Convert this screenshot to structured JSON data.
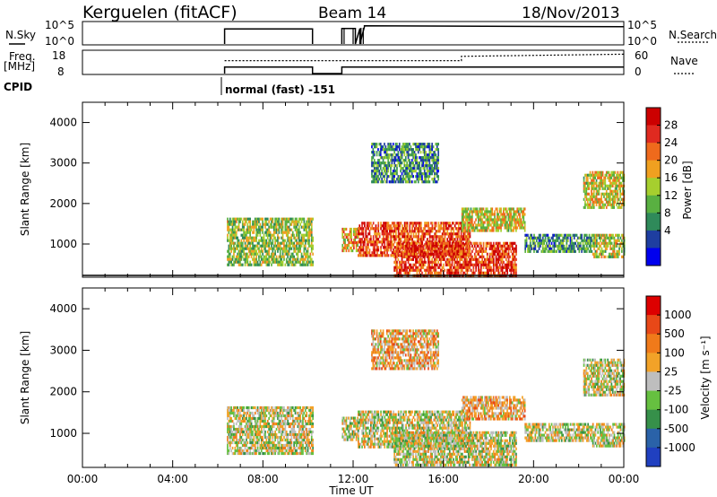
{
  "header": {
    "station": "Kerguelen (fitACF)",
    "beam": "Beam 14",
    "date": "18/Nov/2013"
  },
  "top_panels": {
    "nsky_label": "N.Sky",
    "nsky_ticks": [
      "10^5",
      "10^0"
    ],
    "nsearch_label": "N.Search",
    "nsearch_ticks": [
      "10^5",
      "10^0"
    ],
    "freq_label_line1": "Freq.",
    "freq_label_line2": "[MHz]",
    "freq_ticks": [
      "18",
      "8"
    ],
    "nave_label": "Nave",
    "nave_ticks": [
      "60",
      "0"
    ],
    "cpid_label": "CPID",
    "cpid_value": "normal (fast) -151"
  },
  "chart_data": [
    {
      "type": "heatmap",
      "panel": "power",
      "ylabel": "Slant Range [km]",
      "ylim": [
        180,
        4500
      ],
      "yticks": [
        1000,
        2000,
        3000,
        4000
      ],
      "xlim": [
        0,
        24
      ],
      "colorbar_label": "Power [dB]",
      "colorbar_ticks": [
        "28",
        "24",
        "20",
        "16",
        "12",
        "8",
        "4"
      ],
      "colors": [
        "#0000ee",
        "#1e3ea0",
        "#2f8a5a",
        "#59b041",
        "#a6cf2e",
        "#f0a020",
        "#ef6a1c",
        "#e02a20",
        "#cc0000"
      ],
      "regions": [
        {
          "t": [
            6.4,
            10.2
          ],
          "r": [
            500,
            1650
          ],
          "level": 0.45
        },
        {
          "t": [
            11.5,
            12.2
          ],
          "r": [
            850,
            1400
          ],
          "level": 0.6
        },
        {
          "t": [
            12.2,
            17.2
          ],
          "r": [
            700,
            1550
          ],
          "level": 0.78
        },
        {
          "t": [
            13.8,
            19.2
          ],
          "r": [
            250,
            1050
          ],
          "level": 0.82
        },
        {
          "t": [
            16.8,
            19.6
          ],
          "r": [
            1350,
            1900
          ],
          "level": 0.55
        },
        {
          "t": [
            12.8,
            15.8
          ],
          "r": [
            2550,
            3500
          ],
          "level": 0.3
        },
        {
          "t": [
            19.6,
            22.6
          ],
          "r": [
            800,
            1250
          ],
          "level": 0.3
        },
        {
          "t": [
            22.2,
            24
          ],
          "r": [
            1900,
            2800
          ],
          "level": 0.55
        },
        {
          "t": [
            22.6,
            24
          ],
          "r": [
            700,
            1250
          ],
          "level": 0.5
        }
      ]
    },
    {
      "type": "heatmap",
      "panel": "velocity",
      "ylabel": "Slant Range [km]",
      "ylim": [
        180,
        4500
      ],
      "yticks": [
        1000,
        2000,
        3000,
        4000
      ],
      "xlim": [
        0,
        24
      ],
      "xticks": [
        "00:00",
        "04:00",
        "08:00",
        "12:00",
        "16:00",
        "20:00",
        "00:00"
      ],
      "xlabel": "Time UT",
      "colorbar_label": "Velocity [m s⁻¹]",
      "colorbar_ticks": [
        "1000",
        "500",
        "100",
        "25",
        "-25",
        "-100",
        "-500",
        "-1000"
      ],
      "colors": [
        "#2040c0",
        "#2a62a8",
        "#36904a",
        "#66c040",
        "#bebebe",
        "#f2a228",
        "#f07a1a",
        "#e84818",
        "#dd0000"
      ],
      "regions": [
        {
          "t": [
            6.4,
            10.2
          ],
          "r": [
            500,
            1650
          ],
          "level": 0.5
        },
        {
          "t": [
            11.5,
            12.2
          ],
          "r": [
            850,
            1400
          ],
          "level": 0.5
        },
        {
          "t": [
            12.2,
            17.2
          ],
          "r": [
            700,
            1550
          ],
          "level": 0.5
        },
        {
          "t": [
            13.8,
            19.2
          ],
          "r": [
            250,
            1050
          ],
          "level": 0.5
        },
        {
          "t": [
            16.8,
            19.6
          ],
          "r": [
            1350,
            1900
          ],
          "level": 0.62
        },
        {
          "t": [
            12.8,
            15.8
          ],
          "r": [
            2550,
            3500
          ],
          "level": 0.62
        },
        {
          "t": [
            19.6,
            22.6
          ],
          "r": [
            800,
            1250
          ],
          "level": 0.5
        },
        {
          "t": [
            22.2,
            24
          ],
          "r": [
            1900,
            2800
          ],
          "level": 0.5
        },
        {
          "t": [
            22.6,
            24
          ],
          "r": [
            700,
            1250
          ],
          "level": 0.5
        }
      ]
    },
    {
      "type": "line",
      "panel": "n_sky",
      "ylim": [
        0,
        5
      ],
      "series": [
        {
          "x": [
            6.3,
            6.3,
            10.2,
            10.2
          ],
          "values": [
            0,
            3.5,
            3.5,
            0
          ]
        },
        {
          "x": [
            11.5,
            11.5,
            12.1,
            12.1,
            12.3,
            12.3,
            12.5,
            12.5,
            24
          ],
          "values": [
            0,
            3.6,
            3.6,
            0,
            3.6,
            0,
            4.0,
            4.2,
            4.0
          ]
        }
      ]
    },
    {
      "type": "line",
      "panel": "frequency_nave",
      "freq_ylim": [
        8,
        18
      ],
      "series": [
        {
          "x": [
            6.3,
            6.3,
            10.2,
            10.2,
            11.5,
            11.5,
            24
          ],
          "values": [
            8,
            11,
            11,
            8,
            8,
            11,
            11
          ]
        },
        {
          "x": [
            6.3,
            10.2,
            11.5,
            16.8,
            16.8,
            24
          ],
          "values": [
            14,
            14,
            14,
            14,
            16,
            17
          ]
        }
      ]
    }
  ]
}
